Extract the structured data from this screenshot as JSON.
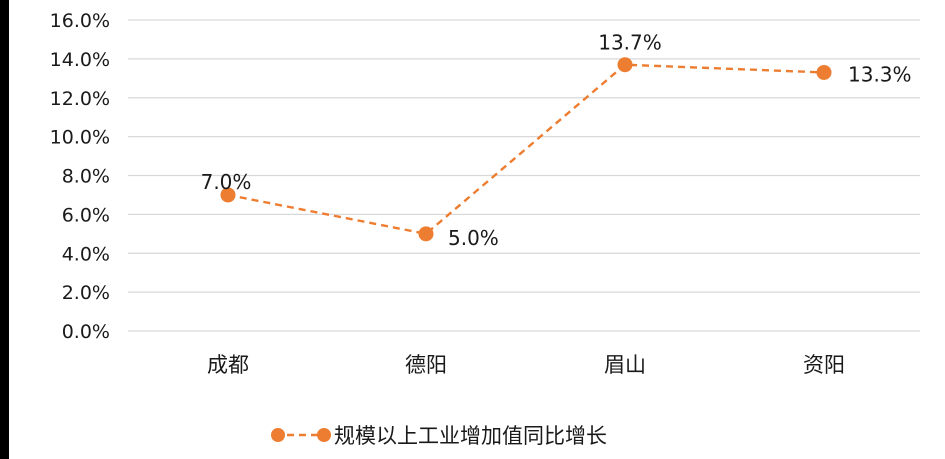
{
  "chart_data": {
    "type": "line",
    "categories": [
      "成都",
      "德阳",
      "眉山",
      "资阳"
    ],
    "series": [
      {
        "name": "规模以上工业增加值同比增长",
        "values": [
          7.0,
          5.0,
          13.7,
          13.3
        ],
        "data_labels": [
          "7.0%",
          "5.0%",
          "13.7%",
          "13.3%"
        ],
        "color": "#ED7D31",
        "line_style": "dashed",
        "marker": "circle"
      }
    ],
    "ylim": [
      0,
      16
    ],
    "yticks": [
      0,
      2,
      4,
      6,
      8,
      10,
      12,
      14,
      16
    ],
    "ytick_labels": [
      "0.0%",
      "2.0%",
      "4.0%",
      "6.0%",
      "8.0%",
      "10.0%",
      "12.0%",
      "14.0%",
      "16.0%"
    ],
    "grid": true,
    "grid_color": "#D9D9D9",
    "legend_position": "bottom",
    "title": "",
    "xlabel": "",
    "ylabel": ""
  }
}
